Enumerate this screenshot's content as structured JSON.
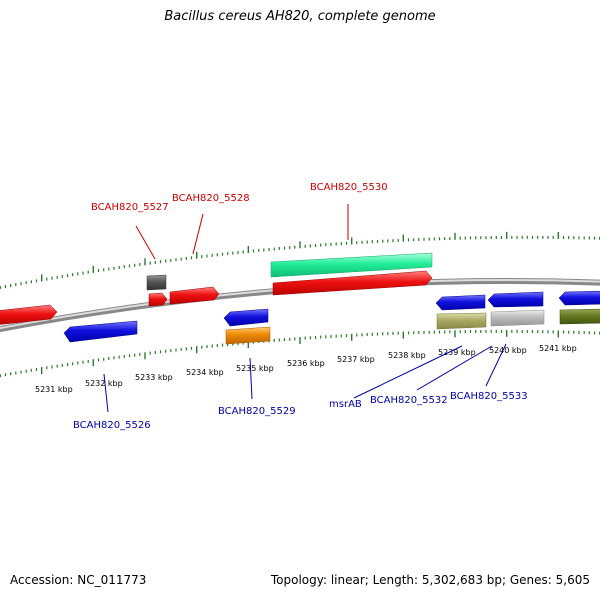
{
  "title": "Bacillus cereus AH820, complete genome",
  "footer": {
    "accession": "Accession: NC_011773",
    "summary": "Topology: linear; Length: 5,302,683 bp; Genes: 5,605"
  },
  "colors": {
    "backbone": "#888888",
    "tick": "#2a7a2a",
    "forward_label": "#cc0000",
    "reverse_label": "#0000aa",
    "red": "#ee1111",
    "blue": "#1111dd",
    "teal": "#22ee99",
    "orange": "#ee8800",
    "darkgray": "#555555",
    "olive": "#aaaa66",
    "lightgray": "#bbbbbb",
    "green": "#667722"
  },
  "ruler": {
    "unit": "kbp",
    "labels": [
      "5231 kbp",
      "5232 kbp",
      "5233 kbp",
      "5234 kbp",
      "5235 kbp",
      "5236 kbp",
      "5237 kbp",
      "5238 kbp",
      "5239 kbp",
      "5240 kbp",
      "5241 kbp"
    ]
  },
  "forward_labels": [
    "BCAH820_5527",
    "BCAH820_5528",
    "BCAH820_5530"
  ],
  "reverse_labels": [
    "BCAH820_5526",
    "BCAH820_5529",
    "msrAB",
    "BCAH820_5532",
    "BCAH820_5533"
  ],
  "features": [
    {
      "strand": "forward",
      "color": "red",
      "icon": "gene-arrow-right"
    },
    {
      "strand": "forward",
      "color": "darkgray",
      "icon": "gene-box"
    },
    {
      "strand": "forward",
      "color": "red",
      "icon": "gene-arrow-right"
    },
    {
      "strand": "forward",
      "color": "red",
      "icon": "gene-arrow-right"
    },
    {
      "strand": "forward",
      "color": "teal",
      "icon": "gene-box"
    },
    {
      "strand": "forward",
      "color": "red",
      "icon": "gene-arrow-right"
    },
    {
      "strand": "reverse",
      "color": "blue",
      "icon": "gene-arrow-left"
    },
    {
      "strand": "reverse",
      "color": "blue",
      "icon": "gene-arrow-left"
    },
    {
      "strand": "reverse",
      "color": "orange",
      "icon": "gene-box"
    },
    {
      "strand": "reverse",
      "color": "blue",
      "icon": "gene-arrow-left"
    },
    {
      "strand": "reverse",
      "color": "olive",
      "icon": "gene-box"
    },
    {
      "strand": "reverse",
      "color": "blue",
      "icon": "gene-arrow-left"
    },
    {
      "strand": "reverse",
      "color": "lightgray",
      "icon": "gene-box"
    },
    {
      "strand": "reverse",
      "color": "blue",
      "icon": "gene-arrow-left"
    },
    {
      "strand": "reverse",
      "color": "green",
      "icon": "gene-box"
    }
  ]
}
